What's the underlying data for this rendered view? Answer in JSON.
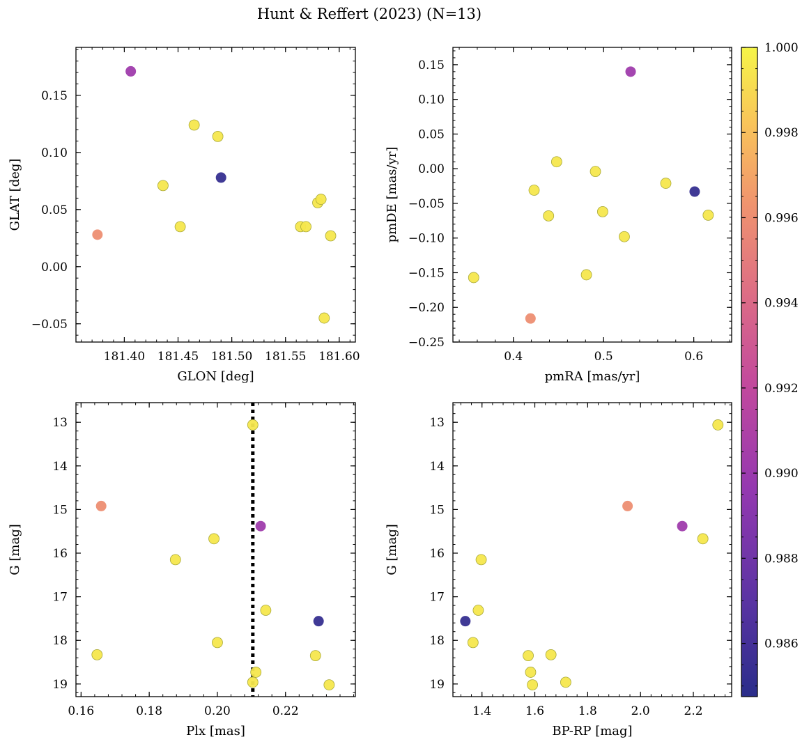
{
  "figure": {
    "title": "Hunt & Reffert (2023) (N=13)"
  },
  "colorbar": {
    "colormap": "plasma",
    "range": [
      0.98475,
      1.0
    ],
    "ticks": [
      "0.986",
      "0.988",
      "0.990",
      "0.992",
      "0.994",
      "0.996",
      "0.998",
      "1.000"
    ]
  },
  "chart_data": [
    {
      "type": "scatter",
      "panel": "top-left",
      "xlabel": "GLON [deg]",
      "ylabel": "GLAT [deg]",
      "xlim": [
        181.355,
        181.615
      ],
      "ylim": [
        -0.066,
        0.192
      ],
      "xticks": [
        "181.40",
        "181.45",
        "181.50",
        "181.55",
        "181.60"
      ],
      "yticks": [
        "0.15",
        "0.10",
        "0.05",
        "0.00",
        "−0.05"
      ],
      "points": [
        {
          "x": 181.375,
          "y": 0.028,
          "c": 0.996
        },
        {
          "x": 181.406,
          "y": 0.171,
          "c": 0.9902
        },
        {
          "x": 181.436,
          "y": 0.071,
          "c": 0.9995
        },
        {
          "x": 181.452,
          "y": 0.035,
          "c": 0.9995
        },
        {
          "x": 181.465,
          "y": 0.124,
          "c": 0.9995
        },
        {
          "x": 181.487,
          "y": 0.114,
          "c": 0.9995
        },
        {
          "x": 181.49,
          "y": 0.078,
          "c": 0.9853
        },
        {
          "x": 181.564,
          "y": 0.035,
          "c": 0.9995
        },
        {
          "x": 181.569,
          "y": 0.035,
          "c": 0.9995
        },
        {
          "x": 181.58,
          "y": 0.056,
          "c": 0.9995
        },
        {
          "x": 181.583,
          "y": 0.059,
          "c": 0.9995
        },
        {
          "x": 181.592,
          "y": 0.027,
          "c": 0.9995
        },
        {
          "x": 181.586,
          "y": -0.045,
          "c": 0.9995
        }
      ]
    },
    {
      "type": "scatter",
      "panel": "top-right",
      "xlabel": "pmRA [mas/yr]",
      "ylabel": "pmDE [mas/yr]",
      "xlim": [
        0.333,
        0.642
      ],
      "ylim": [
        -0.25,
        0.175
      ],
      "xticks": [
        "0.4",
        "0.5",
        "0.6"
      ],
      "yticks": [
        "0.15",
        "0.10",
        "0.05",
        "0.00",
        "−0.05",
        "−0.10",
        "−0.15",
        "−0.20",
        "−0.25"
      ],
      "points": [
        {
          "x": 0.356,
          "y": -0.157,
          "c": 0.9995
        },
        {
          "x": 0.419,
          "y": -0.216,
          "c": 0.996
        },
        {
          "x": 0.423,
          "y": -0.031,
          "c": 0.9995
        },
        {
          "x": 0.439,
          "y": -0.068,
          "c": 0.9995
        },
        {
          "x": 0.448,
          "y": 0.01,
          "c": 0.9995
        },
        {
          "x": 0.481,
          "y": -0.153,
          "c": 0.9995
        },
        {
          "x": 0.491,
          "y": -0.004,
          "c": 0.9995
        },
        {
          "x": 0.499,
          "y": -0.062,
          "c": 0.9995
        },
        {
          "x": 0.523,
          "y": -0.098,
          "c": 0.9995
        },
        {
          "x": 0.53,
          "y": 0.14,
          "c": 0.9902
        },
        {
          "x": 0.569,
          "y": -0.021,
          "c": 0.9995
        },
        {
          "x": 0.601,
          "y": -0.033,
          "c": 0.9853
        },
        {
          "x": 0.616,
          "y": -0.067,
          "c": 0.9995
        }
      ]
    },
    {
      "type": "scatter",
      "panel": "bottom-left",
      "xlabel": "Plx [mas]",
      "ylabel": "G [mag]",
      "xlim": [
        0.1585,
        0.2405
      ],
      "ylim": [
        19.29,
        12.55
      ],
      "y_inverted": true,
      "xticks": [
        "0.16",
        "0.18",
        "0.20",
        "0.22"
      ],
      "yticks": [
        "13",
        "14",
        "15",
        "16",
        "17",
        "18",
        "19"
      ],
      "vline": {
        "x": 0.2104,
        "style": "dotted"
      },
      "points": [
        {
          "x": 0.2104,
          "y": 13.06,
          "c": 0.9995
        },
        {
          "x": 0.1659,
          "y": 14.92,
          "c": 0.996
        },
        {
          "x": 0.2127,
          "y": 15.38,
          "c": 0.9902
        },
        {
          "x": 0.199,
          "y": 15.67,
          "c": 0.9995
        },
        {
          "x": 0.1877,
          "y": 16.15,
          "c": 0.9995
        },
        {
          "x": 0.2142,
          "y": 17.31,
          "c": 0.9995
        },
        {
          "x": 0.2297,
          "y": 17.56,
          "c": 0.9853
        },
        {
          "x": 0.2,
          "y": 18.05,
          "c": 0.9995
        },
        {
          "x": 0.1647,
          "y": 18.33,
          "c": 0.9995
        },
        {
          "x": 0.2288,
          "y": 18.35,
          "c": 0.9995
        },
        {
          "x": 0.2113,
          "y": 18.73,
          "c": 0.9995
        },
        {
          "x": 0.2104,
          "y": 18.96,
          "c": 0.9995
        },
        {
          "x": 0.2328,
          "y": 19.02,
          "c": 0.9995
        }
      ]
    },
    {
      "type": "scatter",
      "panel": "bottom-right",
      "xlabel": "BP-RP [mag]",
      "ylabel": "G [mag]",
      "xlim": [
        1.29,
        2.345
      ],
      "ylim": [
        19.29,
        12.55
      ],
      "y_inverted": true,
      "xticks": [
        "1.4",
        "1.6",
        "1.8",
        "2.0",
        "2.2"
      ],
      "yticks": [
        "13",
        "14",
        "15",
        "16",
        "17",
        "18",
        "19"
      ],
      "points": [
        {
          "x": 2.293,
          "y": 13.06,
          "c": 0.9995
        },
        {
          "x": 1.951,
          "y": 14.92,
          "c": 0.996
        },
        {
          "x": 2.158,
          "y": 15.38,
          "c": 0.9902
        },
        {
          "x": 2.236,
          "y": 15.67,
          "c": 0.9995
        },
        {
          "x": 1.397,
          "y": 16.15,
          "c": 0.9995
        },
        {
          "x": 1.386,
          "y": 17.31,
          "c": 0.9995
        },
        {
          "x": 1.337,
          "y": 17.56,
          "c": 0.9853
        },
        {
          "x": 1.366,
          "y": 18.05,
          "c": 0.9995
        },
        {
          "x": 1.575,
          "y": 18.35,
          "c": 0.9995
        },
        {
          "x": 1.661,
          "y": 18.33,
          "c": 0.9995
        },
        {
          "x": 1.584,
          "y": 18.73,
          "c": 0.9995
        },
        {
          "x": 1.717,
          "y": 18.96,
          "c": 0.9995
        },
        {
          "x": 1.591,
          "y": 19.02,
          "c": 0.9995
        }
      ]
    }
  ]
}
